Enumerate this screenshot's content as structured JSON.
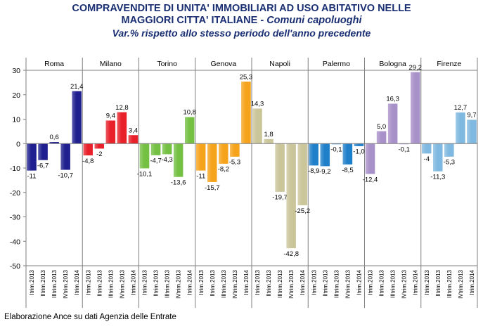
{
  "title": {
    "line1": "COMPRAVENDITE DI UNITA' IMMOBILIARI AD USO ABITATIVO NELLE",
    "line2_main": "MAGGIORI CITTA' ITALIANE - ",
    "line2_sub": "Comuni capoluoghi",
    "line3": "Var.% rispetto allo stesso periodo dell'anno precedente"
  },
  "source": "Elaborazione Ance su dati Agenzia delle Entrate",
  "chart_data": {
    "type": "bar",
    "title": "COMPRAVENDITE DI UNITA' IMMOBILIARI AD USO ABITATIVO NELLE MAGGIORI CITTA' ITALIANE - Comuni capoluoghi",
    "subtitle": "Var.% rispetto allo stesso periodo dell'anno precedente",
    "ylim": [
      -50,
      30
    ],
    "yticks": [
      -50,
      -40,
      -30,
      -20,
      -10,
      0,
      10,
      20,
      30
    ],
    "grid": false,
    "legend": "none",
    "periods": [
      "Itrim.2013",
      "IItrim.2013",
      "IIItrim.2013",
      "IVtrim.2013",
      "Itrim.2014"
    ],
    "groups": [
      {
        "name": "Roma",
        "color": "#1f1f8f",
        "values": [
          -11,
          -6.7,
          0.6,
          -10.7,
          21.4
        ],
        "labels": [
          "-11",
          "-6,7",
          "0,6",
          "-10,7",
          "21,4"
        ]
      },
      {
        "name": "Milano",
        "color": "#e8202a",
        "values": [
          -4.8,
          -2,
          9.4,
          12.8,
          3.4
        ],
        "labels": [
          "-4,8",
          "-2",
          "9,4",
          "12,8",
          "3,4"
        ]
      },
      {
        "name": "Torino",
        "color": "#74c043",
        "values": [
          -10.1,
          -4.7,
          -4.3,
          -13.6,
          10.8
        ],
        "labels": [
          "-10,1",
          "-4,7",
          "-4,3",
          "-13,6",
          "10,8"
        ]
      },
      {
        "name": "Genova",
        "color": "#f5a31a",
        "values": [
          -11,
          -15.7,
          -8.2,
          -5.3,
          25.3
        ],
        "labels": [
          "-11",
          "-15,7",
          "-8,2",
          "-5,3",
          "25,3"
        ]
      },
      {
        "name": "Napoli",
        "color": "#cbc59a",
        "values": [
          14.3,
          1.8,
          -19.7,
          -42.8,
          -25.2
        ],
        "labels": [
          "14,3",
          "1,8",
          "-19,7",
          "-42,8",
          "-25,2"
        ]
      },
      {
        "name": "Palermo",
        "color": "#1f7fc9",
        "values": [
          -8.9,
          -9.2,
          -0.1,
          -8.5,
          -1.0
        ],
        "labels": [
          "-8,9",
          "-9,2",
          "-0,1",
          "-8,5",
          "-1,0"
        ]
      },
      {
        "name": "Bologna",
        "color": "#a890c9",
        "values": [
          -12.4,
          5.0,
          16.3,
          -0.1,
          29.2
        ],
        "labels": [
          "-12,4",
          "5,0",
          "16,3",
          "-0,1",
          "29,2"
        ]
      },
      {
        "name": "Firenze",
        "color": "#7fb8e0",
        "values": [
          -4,
          -11.3,
          -5.3,
          12.7,
          9.7
        ],
        "labels": [
          "-4",
          "-11,3",
          "-5,3",
          "12,7",
          "9,7"
        ]
      }
    ]
  }
}
